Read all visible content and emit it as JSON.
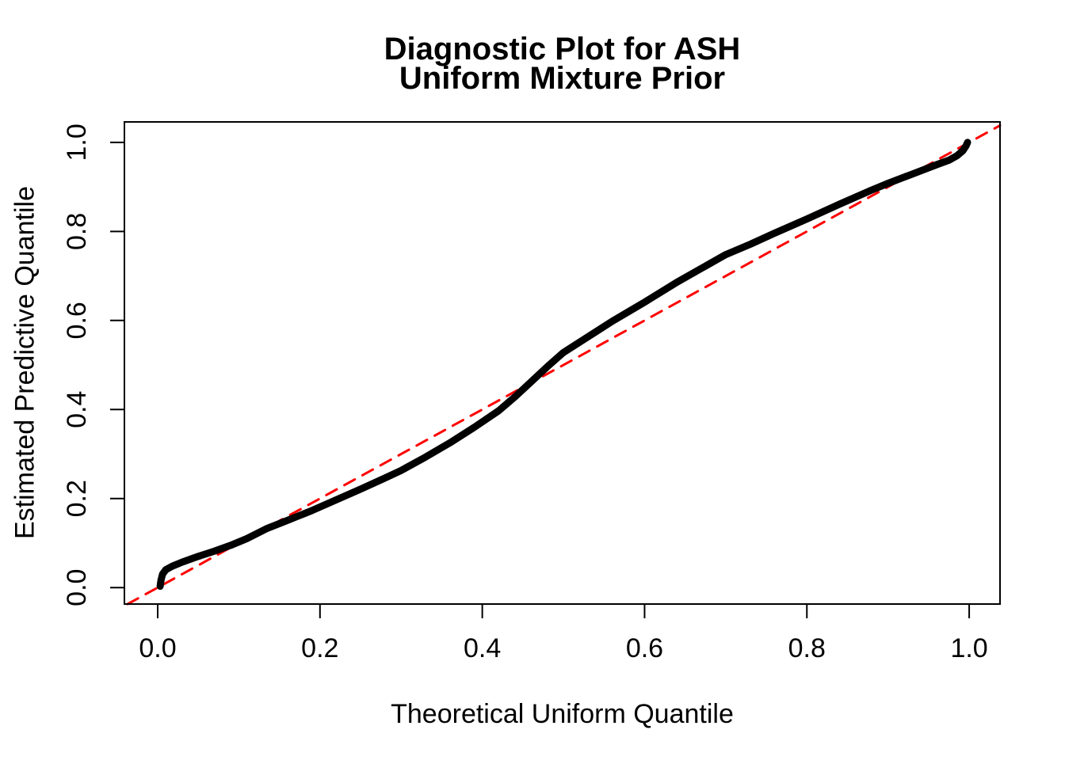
{
  "figure": {
    "title_line1": "Diagnostic Plot for ASH",
    "title_line2": "Uniform Mixture Prior"
  },
  "chart_data": {
    "type": "line",
    "title": "Diagnostic Plot for ASH / Uniform Mixture Prior",
    "xlabel": "Theoretical Uniform Quantile",
    "ylabel": "Estimated Predictive Quantile",
    "xlim": [
      -0.041,
      1.038
    ],
    "ylim": [
      -0.037,
      1.046
    ],
    "x_ticks": [
      0.0,
      0.2,
      0.4,
      0.6,
      0.8,
      1.0
    ],
    "x_tick_labels": [
      "0.0",
      "0.2",
      "0.4",
      "0.6",
      "0.8",
      "1.0"
    ],
    "y_ticks": [
      0.0,
      0.2,
      0.4,
      0.6,
      0.8,
      1.0
    ],
    "y_tick_labels": [
      "0.0",
      "0.2",
      "0.4",
      "0.6",
      "0.8",
      "1.0"
    ],
    "grid": false,
    "legend_position": "none",
    "series": [
      {
        "name": "estimated-vs-theoretical-quantile-curve",
        "type": "line",
        "color": "#000000",
        "line_width": 9,
        "dashed": false,
        "points": [
          [
            0.003,
            0.003
          ],
          [
            0.004,
            0.016
          ],
          [
            0.006,
            0.03
          ],
          [
            0.01,
            0.04
          ],
          [
            0.018,
            0.048
          ],
          [
            0.03,
            0.057
          ],
          [
            0.05,
            0.07
          ],
          [
            0.07,
            0.082
          ],
          [
            0.09,
            0.095
          ],
          [
            0.11,
            0.11
          ],
          [
            0.135,
            0.133
          ],
          [
            0.16,
            0.151
          ],
          [
            0.19,
            0.173
          ],
          [
            0.22,
            0.197
          ],
          [
            0.25,
            0.221
          ],
          [
            0.28,
            0.246
          ],
          [
            0.3,
            0.263
          ],
          [
            0.33,
            0.293
          ],
          [
            0.36,
            0.325
          ],
          [
            0.39,
            0.36
          ],
          [
            0.42,
            0.397
          ],
          [
            0.44,
            0.428
          ],
          [
            0.46,
            0.462
          ],
          [
            0.48,
            0.496
          ],
          [
            0.5,
            0.528
          ],
          [
            0.53,
            0.563
          ],
          [
            0.56,
            0.598
          ],
          [
            0.6,
            0.641
          ],
          [
            0.64,
            0.686
          ],
          [
            0.67,
            0.717
          ],
          [
            0.7,
            0.748
          ],
          [
            0.73,
            0.771
          ],
          [
            0.76,
            0.796
          ],
          [
            0.8,
            0.828
          ],
          [
            0.84,
            0.861
          ],
          [
            0.88,
            0.893
          ],
          [
            0.9,
            0.908
          ],
          [
            0.92,
            0.922
          ],
          [
            0.94,
            0.936
          ],
          [
            0.96,
            0.95
          ],
          [
            0.975,
            0.96
          ],
          [
            0.985,
            0.97
          ],
          [
            0.992,
            0.981
          ],
          [
            0.996,
            0.992
          ],
          [
            0.998,
            1.0
          ]
        ]
      },
      {
        "name": "identity-reference-line",
        "type": "line",
        "color": "#FF0000",
        "line_width": 3,
        "dashed": true,
        "dash_pattern": [
          15,
          11
        ],
        "points": [
          [
            -0.037,
            -0.037
          ],
          [
            1.038,
            1.038
          ]
        ]
      }
    ]
  },
  "colors": {
    "background": "#FFFFFF",
    "axis": "#000000",
    "text": "#000000",
    "curve": "#000000",
    "reference_line": "#FF0000"
  }
}
